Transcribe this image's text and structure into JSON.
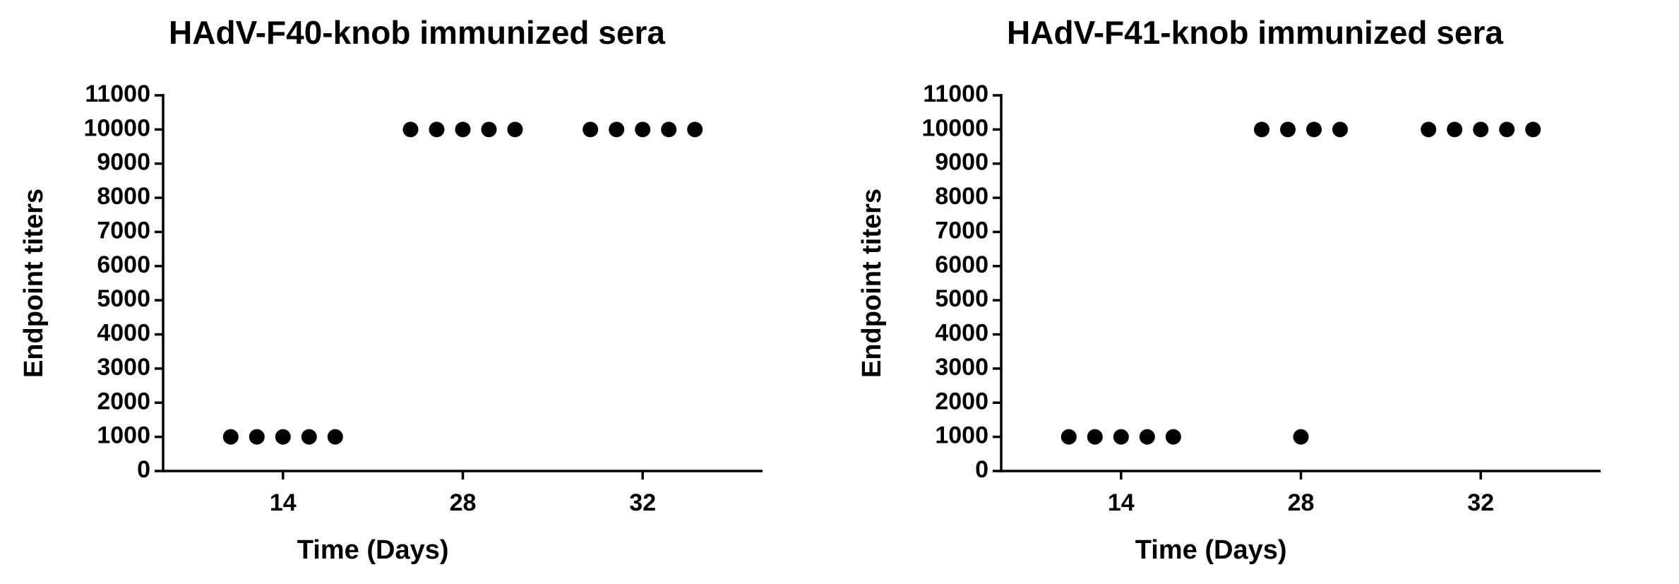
{
  "chart_data": [
    {
      "type": "strip",
      "title": "HAdV-F40-knob immunized sera",
      "x_label": "Time (Days)",
      "y_label": "Endpoint titers",
      "categories": [
        "14",
        "28",
        "32"
      ],
      "color": "#000000",
      "values": [
        [
          1000,
          1000,
          1000,
          1000,
          1000
        ],
        [
          10000,
          10000,
          10000,
          10000,
          10000
        ],
        [
          10000,
          10000,
          10000,
          10000,
          10000
        ]
      ],
      "ylim": [
        0,
        11000
      ],
      "yticks": [
        0,
        1000,
        2000,
        3000,
        4000,
        5000,
        6000,
        7000,
        8000,
        9000,
        10000,
        11000
      ]
    },
    {
      "type": "strip",
      "title": "HAdV-F41-knob immunized sera",
      "x_label": "Time (Days)",
      "y_label": "Endpoint titers",
      "categories": [
        "14",
        "28",
        "32"
      ],
      "color": "#000000",
      "values": [
        [
          1000,
          1000,
          1000,
          1000,
          1000
        ],
        [
          10000,
          10000,
          1000,
          10000,
          10000
        ],
        [
          10000,
          10000,
          10000,
          10000,
          10000
        ]
      ],
      "ylim": [
        0,
        11000
      ],
      "yticks": [
        0,
        1000,
        2000,
        3000,
        4000,
        5000,
        6000,
        7000,
        8000,
        9000,
        10000,
        11000
      ]
    }
  ]
}
